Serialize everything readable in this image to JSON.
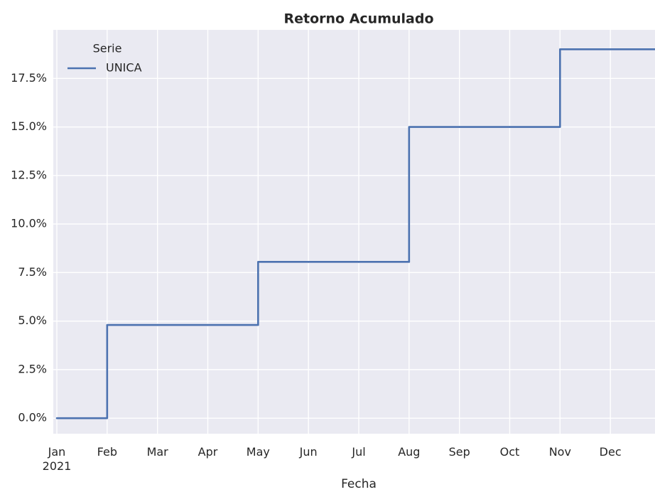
{
  "chart_data": {
    "type": "line",
    "title": "Retorno Acumulado",
    "x_label": "Fecha",
    "x": [
      "2021-01",
      "2021-02",
      "2021-03",
      "2021-04",
      "2021-05",
      "2021-06",
      "2021-07",
      "2021-08",
      "2021-09",
      "2021-10",
      "2021-11",
      "2021-12"
    ],
    "series": [
      {
        "name": "UNICA",
        "color": "#4c72b0",
        "values": [
          0.0,
          4.8,
          4.8,
          4.8,
          8.05,
          8.05,
          8.05,
          15.0,
          15.0,
          15.0,
          19.0,
          19.0
        ]
      }
    ],
    "step": true,
    "legend": {
      "title": "Serie",
      "position": "upper left"
    },
    "xlim": [
      "2021-01",
      "2022-01"
    ],
    "xticks": [
      {
        "value": "2021-01",
        "label": "Jan\n2021"
      },
      {
        "value": "2021-02",
        "label": "Feb"
      },
      {
        "value": "2021-03",
        "label": "Mar"
      },
      {
        "value": "2021-04",
        "label": "Apr"
      },
      {
        "value": "2021-05",
        "label": "May"
      },
      {
        "value": "2021-06",
        "label": "Jun"
      },
      {
        "value": "2021-07",
        "label": "Jul"
      },
      {
        "value": "2021-08",
        "label": "Aug"
      },
      {
        "value": "2021-09",
        "label": "Sep"
      },
      {
        "value": "2021-10",
        "label": "Oct"
      },
      {
        "value": "2021-11",
        "label": "Nov"
      },
      {
        "value": "2021-12",
        "label": "Dec"
      }
    ],
    "ylim": [
      -0.8,
      20.0
    ],
    "yticks": [
      {
        "value": 0,
        "label": "0.0%"
      },
      {
        "value": 2.5,
        "label": "2.5%"
      },
      {
        "value": 5,
        "label": "5.0%"
      },
      {
        "value": 7.5,
        "label": "7.5%"
      },
      {
        "value": 10,
        "label": "10.0%"
      },
      {
        "value": 12.5,
        "label": "12.5%"
      },
      {
        "value": 15,
        "label": "15.0%"
      },
      {
        "value": 17.5,
        "label": "17.5%"
      }
    ],
    "grid": true
  }
}
